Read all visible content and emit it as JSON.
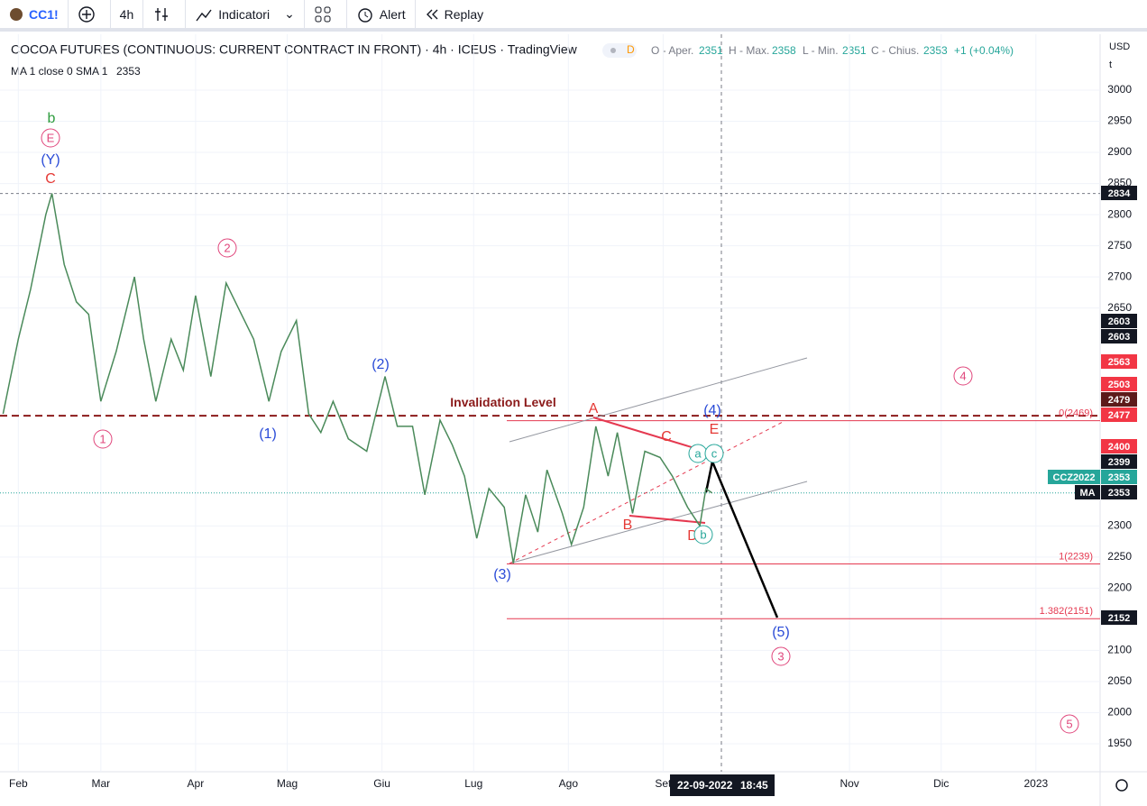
{
  "toolbar": {
    "symbol": "CC1!",
    "interval": "4h",
    "indicators": "Indicatori",
    "alert": "Alert",
    "replay": "Replay"
  },
  "header": {
    "title": "COCOA FUTURES (CONTINUOUS: CURRENT CONTRACT IN FRONT) · 4h · ICEUS · TradingView",
    "badge": "D",
    "ohlc": [
      "O - Aper.",
      "2351",
      "H - Max.",
      "2358",
      "L - Min.",
      "2351",
      "C - Chius.",
      "2353",
      "+1 (+0.04%)"
    ],
    "ma": "MA 1 close 0 SMA 1",
    "ma_value": "2353"
  },
  "axis": {
    "currency": "USD",
    "unit": "t"
  },
  "chart": {
    "type": "line",
    "xlim": [
      -5,
      355
    ],
    "ylim": [
      1900,
      3050
    ],
    "yticks": [
      3000,
      2950,
      2900,
      2850,
      2800,
      2750,
      2700,
      2650,
      2300,
      2250,
      2200,
      2100,
      2050,
      2000,
      1950
    ],
    "months": [
      "Feb",
      "Mar",
      "Apr",
      "Mag",
      "Giu",
      "Lug",
      "Ago",
      "Set",
      "Nov",
      "Dic",
      "2023"
    ],
    "month_days": [
      1,
      28,
      59,
      89,
      120,
      150,
      181,
      212,
      273,
      303,
      334
    ],
    "cursor_date": "22-09-2022",
    "cursor_time": "18:45",
    "days": [
      -4,
      1,
      5,
      10,
      12,
      16,
      20,
      24,
      28,
      33,
      39,
      42,
      46,
      51,
      55,
      59,
      64,
      69,
      74,
      78,
      83,
      87,
      92,
      96,
      100,
      104,
      109,
      115,
      118,
      121,
      125,
      130,
      134,
      139,
      143,
      147,
      151,
      155,
      160,
      163,
      167,
      171,
      174,
      179,
      182,
      186,
      190,
      194,
      197,
      202,
      206,
      211,
      215,
      220,
      224,
      226,
      228
    ],
    "closes": [
      2480,
      2600,
      2680,
      2800,
      2834,
      2720,
      2660,
      2640,
      2500,
      2580,
      2700,
      2600,
      2500,
      2600,
      2550,
      2670,
      2540,
      2690,
      2640,
      2600,
      2500,
      2580,
      2630,
      2480,
      2450,
      2500,
      2440,
      2420,
      2480,
      2540,
      2460,
      2460,
      2350,
      2470,
      2430,
      2380,
      2280,
      2360,
      2330,
      2240,
      2350,
      2290,
      2390,
      2320,
      2270,
      2330,
      2460,
      2380,
      2450,
      2320,
      2420,
      2410,
      2380,
      2330,
      2300,
      2360,
      2353
    ],
    "levels": [
      {
        "value": 2469,
        "label": "0(2469)"
      },
      {
        "value": 2239,
        "label": "1(2239)"
      },
      {
        "value": 2151,
        "label": "1.382(2151)"
      }
    ],
    "invalidation": {
      "value": 2477,
      "label": "Invalidation Level"
    },
    "annotations": [
      "b",
      "E",
      "(Y)",
      "C",
      "2",
      "1",
      "(1)",
      "(2)",
      "(3)",
      "A",
      "B",
      "C",
      "D",
      "E",
      "(4)",
      "a",
      "c",
      "b",
      "(5)",
      "3",
      "4",
      "5"
    ],
    "badges": [
      2834,
      2603,
      2603,
      2563,
      2503,
      2479,
      2477,
      2400,
      2399,
      2353,
      2353,
      2152
    ],
    "badge_tags": [
      "CCZ2022",
      "MA"
    ]
  }
}
